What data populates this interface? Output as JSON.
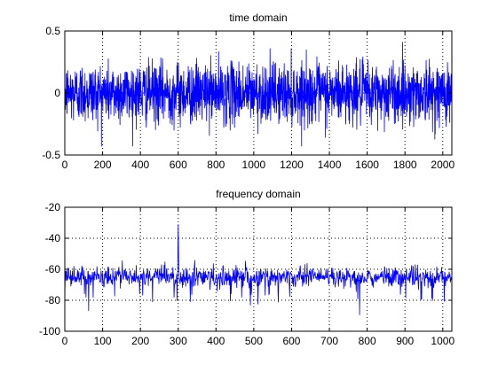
{
  "window": {
    "background": "#ffffff"
  },
  "chart_data": [
    {
      "type": "line",
      "title": "time domain",
      "xlabel": "",
      "ylabel": "",
      "xlim": [
        0,
        2048
      ],
      "ylim": [
        -0.5,
        0.5
      ],
      "xticks": [
        0,
        200,
        400,
        600,
        800,
        1000,
        1200,
        1400,
        1600,
        1800,
        2000
      ],
      "yticks": [
        -0.5,
        0,
        0.5
      ],
      "xtick_labels": [
        "0",
        "200",
        "400",
        "600",
        "800",
        "1000",
        "1200",
        "1400",
        "1600",
        "1800",
        "2000"
      ],
      "ytick_labels": [
        "-0.5",
        "0",
        "0.5"
      ],
      "grid": true,
      "line_color": "#0000ff",
      "series": [
        {
          "n_points": 2048,
          "description_values": "noise-like signal, mean ~0, mostly within ±0.25, peaks to about ±0.45",
          "x_start": 0,
          "x_end": 2047,
          "y_min": -0.43,
          "y_max": 0.48
        }
      ]
    },
    {
      "type": "line",
      "title": "frequency domain",
      "xlabel": "",
      "ylabel": "",
      "xlim": [
        0,
        1024
      ],
      "ylim": [
        -100,
        -20
      ],
      "xticks": [
        0,
        100,
        200,
        300,
        400,
        500,
        600,
        700,
        800,
        900,
        1000
      ],
      "yticks": [
        -100,
        -80,
        -60,
        -40,
        -20
      ],
      "xtick_labels": [
        "0",
        "100",
        "200",
        "300",
        "400",
        "500",
        "600",
        "700",
        "800",
        "900",
        "1000"
      ],
      "ytick_labels": [
        "-100",
        "-80",
        "-60",
        "-40",
        "-20"
      ],
      "grid": true,
      "line_color": "#0000ff",
      "series": [
        {
          "n_points": 1024,
          "baseline": -65,
          "y_min": -92,
          "y_max": -31,
          "peak_x": 300,
          "peak_y": -31
        }
      ]
    }
  ]
}
